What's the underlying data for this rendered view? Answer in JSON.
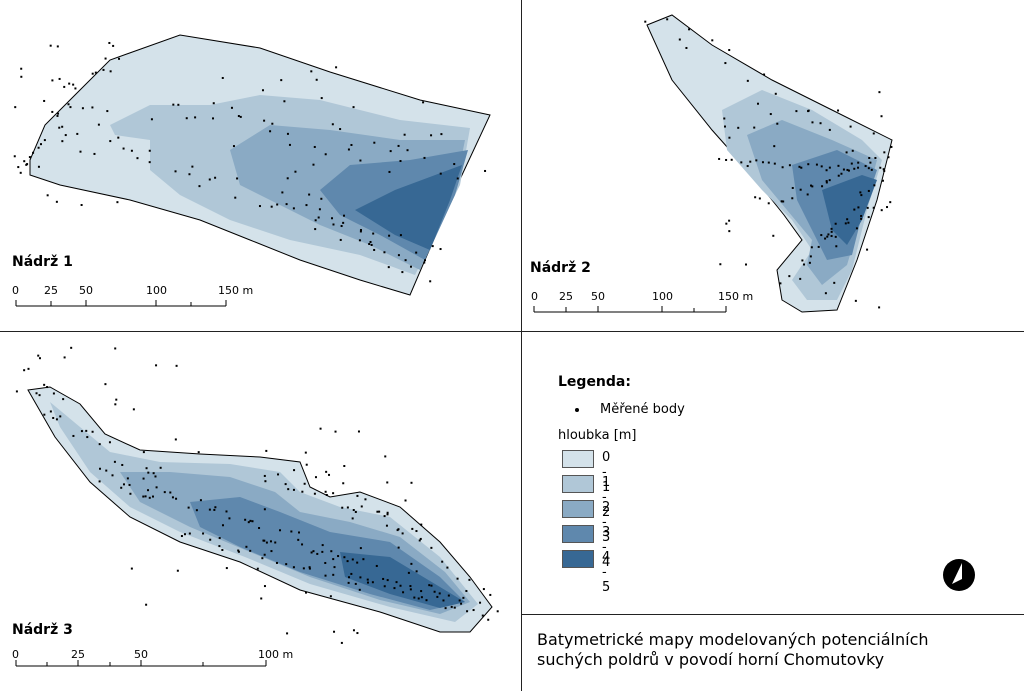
{
  "tanks": [
    {
      "title": "Nádrž 1",
      "scale_labels": [
        "0",
        "25",
        "50",
        "100",
        "150 m"
      ]
    },
    {
      "title": "Nádrž 2",
      "scale_labels": [
        "0",
        "25",
        "50",
        "100",
        "150 m"
      ]
    },
    {
      "title": "Nádrž 3",
      "scale_labels": [
        "0",
        "25",
        "50",
        "100 m"
      ]
    }
  ],
  "legend": {
    "title": "Legenda:",
    "points_label": "Měřené body",
    "depth_label": "hloubka [m]",
    "classes": [
      {
        "label": "0 - 1",
        "color": "#d4e2ea"
      },
      {
        "label": "1 - 2",
        "color": "#b0c7d7"
      },
      {
        "label": "2 - 3",
        "color": "#8aaac4"
      },
      {
        "label": "3 - 4",
        "color": "#5f88ad"
      },
      {
        "label": "4 - 5",
        "color": "#376894"
      }
    ]
  },
  "caption": {
    "line1": "Batymetrické mapy modelovaných potenciálních",
    "line2": "suchých poldrů v povodí horní Chomutovky"
  },
  "north_arrow_icon": "north-arrow-icon"
}
